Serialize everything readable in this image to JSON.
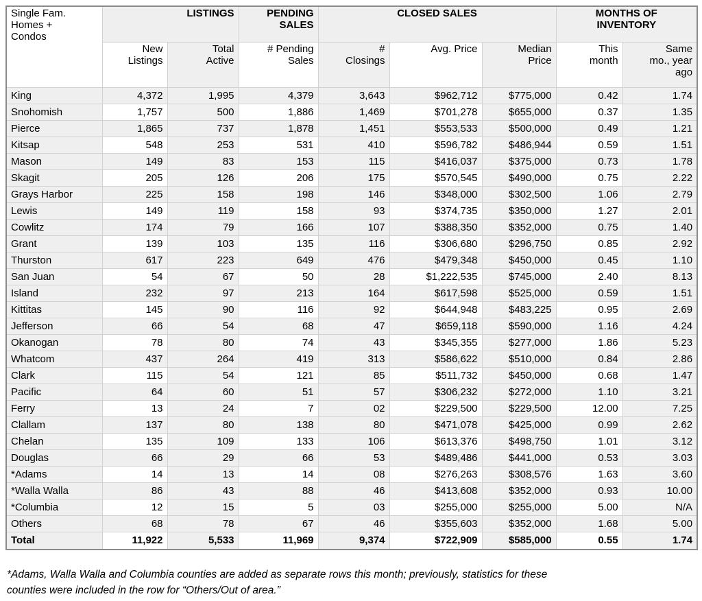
{
  "colors": {
    "cell_shade": "#efefef",
    "grid_line": "#d2d2d2",
    "outer_border": "#8a8a8a",
    "text": "#000000",
    "background": "#ffffff"
  },
  "table": {
    "corner_label": "Single Fam.\nHomes +\nCondos",
    "groups": [
      "LISTINGS",
      "PENDING\nSALES",
      "CLOSED SALES",
      "MONTHS OF\nINVENTORY"
    ],
    "columns": [
      "New\nListings",
      "Total\nActive",
      "# Pending\nSales",
      "#\nClosings",
      "Avg. Price",
      "Median\nPrice",
      "This\nmonth",
      "Same\nmo., year\nago"
    ],
    "rows": [
      {
        "county": "King",
        "values": [
          "4,372",
          "1,995",
          "4,379",
          "3,643",
          "$962,712",
          "$775,000",
          "0.42",
          "1.74"
        ]
      },
      {
        "county": "Snohomish",
        "values": [
          "1,757",
          "500",
          "1,886",
          "1,469",
          "$701,278",
          "$655,000",
          "0.37",
          "1.35"
        ]
      },
      {
        "county": "Pierce",
        "values": [
          "1,865",
          "737",
          "1,878",
          "1,451",
          "$553,533",
          "$500,000",
          "0.49",
          "1.21"
        ]
      },
      {
        "county": "Kitsap",
        "values": [
          "548",
          "253",
          "531",
          "410",
          "$596,782",
          "$486,944",
          "0.59",
          "1.51"
        ]
      },
      {
        "county": "Mason",
        "values": [
          "149",
          "83",
          "153",
          "115",
          "$416,037",
          "$375,000",
          "0.73",
          "1.78"
        ]
      },
      {
        "county": "Skagit",
        "values": [
          "205",
          "126",
          "206",
          "175",
          "$570,545",
          "$490,000",
          "0.75",
          "2.22"
        ]
      },
      {
        "county": "Grays Harbor",
        "values": [
          "225",
          "158",
          "198",
          "146",
          "$348,000",
          "$302,500",
          "1.06",
          "2.79"
        ]
      },
      {
        "county": "Lewis",
        "values": [
          "149",
          "119",
          "158",
          "93",
          "$374,735",
          "$350,000",
          "1.27",
          "2.01"
        ]
      },
      {
        "county": "Cowlitz",
        "values": [
          "174",
          "79",
          "166",
          "107",
          "$388,350",
          "$352,000",
          "0.75",
          "1.40"
        ]
      },
      {
        "county": "Grant",
        "values": [
          "139",
          "103",
          "135",
          "116",
          "$306,680",
          "$296,750",
          "0.85",
          "2.92"
        ]
      },
      {
        "county": "Thurston",
        "values": [
          "617",
          "223",
          "649",
          "476",
          "$479,348",
          "$450,000",
          "0.45",
          "1.10"
        ]
      },
      {
        "county": "San Juan",
        "values": [
          "54",
          "67",
          "50",
          "28",
          "$1,222,535",
          "$745,000",
          "2.40",
          "8.13"
        ]
      },
      {
        "county": "Island",
        "values": [
          "232",
          "97",
          "213",
          "164",
          "$617,598",
          "$525,000",
          "0.59",
          "1.51"
        ]
      },
      {
        "county": "Kittitas",
        "values": [
          "145",
          "90",
          "116",
          "92",
          "$644,948",
          "$483,225",
          "0.95",
          "2.69"
        ]
      },
      {
        "county": "Jefferson",
        "values": [
          "66",
          "54",
          "68",
          "47",
          "$659,118",
          "$590,000",
          "1.16",
          "4.24"
        ]
      },
      {
        "county": "Okanogan",
        "values": [
          "78",
          "80",
          "74",
          "43",
          "$345,355",
          "$277,000",
          "1.86",
          "5.23"
        ]
      },
      {
        "county": "Whatcom",
        "values": [
          "437",
          "264",
          "419",
          "313",
          "$586,622",
          "$510,000",
          "0.84",
          "2.86"
        ]
      },
      {
        "county": "Clark",
        "values": [
          "115",
          "54",
          "121",
          "85",
          "$511,732",
          "$450,000",
          "0.68",
          "1.47"
        ]
      },
      {
        "county": "Pacific",
        "values": [
          "64",
          "60",
          "51",
          "57",
          "$306,232",
          "$272,000",
          "1.10",
          "3.21"
        ]
      },
      {
        "county": "Ferry",
        "values": [
          "13",
          "24",
          "7",
          "02",
          "$229,500",
          "$229,500",
          "12.00",
          "7.25"
        ]
      },
      {
        "county": "Clallam",
        "values": [
          "137",
          "80",
          "138",
          "80",
          "$471,078",
          "$425,000",
          "0.99",
          "2.62"
        ]
      },
      {
        "county": "Chelan",
        "values": [
          "135",
          "109",
          "133",
          "106",
          "$613,376",
          "$498,750",
          "1.01",
          "3.12"
        ]
      },
      {
        "county": "Douglas",
        "values": [
          "66",
          "29",
          "66",
          "53",
          "$489,486",
          "$441,000",
          "0.53",
          "3.03"
        ]
      },
      {
        "county": "*Adams",
        "values": [
          "14",
          "13",
          "14",
          "08",
          "$276,263",
          "$308,576",
          "1.63",
          "3.60"
        ]
      },
      {
        "county": "*Walla Walla",
        "values": [
          "86",
          "43",
          "88",
          "46",
          "$413,608",
          "$352,000",
          "0.93",
          "10.00"
        ]
      },
      {
        "county": "*Columbia",
        "values": [
          "12",
          "15",
          "5",
          "03",
          "$255,000",
          "$255,000",
          "5.00",
          "N/A"
        ]
      },
      {
        "county": "Others",
        "values": [
          "68",
          "78",
          "67",
          "46",
          "$355,603",
          "$352,000",
          "1.68",
          "5.00"
        ]
      }
    ],
    "total": {
      "county": "Total",
      "values": [
        "11,922",
        "5,533",
        "11,969",
        "9,374",
        "$722,909",
        "$585,000",
        "0.55",
        "1.74"
      ]
    }
  },
  "footnote": {
    "text": "*Adams, Walla Walla and Columbia counties are added as separate rows this month; previously, statistics for these\ncounties were included in the row for “Others/Out of area.”"
  }
}
